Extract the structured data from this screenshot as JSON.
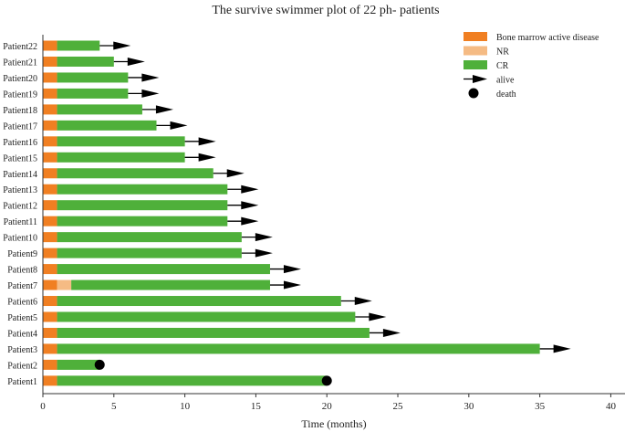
{
  "chart_data": {
    "type": "bar",
    "title": "The survive swimmer plot of 22 ph- patients",
    "xlabel": "Time (months)",
    "ylabel": "",
    "xlim": [
      0,
      41
    ],
    "xticks": [
      0,
      5,
      10,
      15,
      20,
      25,
      30,
      35,
      40
    ],
    "grid": false,
    "legend_position": "top-right",
    "colors": {
      "disease": "#f07f22",
      "nr": "#f5bb84",
      "cr": "#4fb03a",
      "marker": "#000000"
    },
    "legend": [
      {
        "key": "disease",
        "label": "Bone marrow active disease"
      },
      {
        "key": "nr",
        "label": "NR"
      },
      {
        "key": "cr",
        "label": "CR"
      },
      {
        "key": "alive",
        "label": "alive"
      },
      {
        "key": "death",
        "label": "death"
      }
    ],
    "patients": [
      {
        "label": "Patient22",
        "disease": 1,
        "nr": 0,
        "cr": 3,
        "outcome": "alive"
      },
      {
        "label": "Patient21",
        "disease": 1,
        "nr": 0,
        "cr": 4,
        "outcome": "alive"
      },
      {
        "label": "Patient20",
        "disease": 1,
        "nr": 0,
        "cr": 5,
        "outcome": "alive"
      },
      {
        "label": "Patient19",
        "disease": 1,
        "nr": 0,
        "cr": 5,
        "outcome": "alive"
      },
      {
        "label": "Patient18",
        "disease": 1,
        "nr": 0,
        "cr": 6,
        "outcome": "alive"
      },
      {
        "label": "Patient17",
        "disease": 1,
        "nr": 0,
        "cr": 7,
        "outcome": "alive"
      },
      {
        "label": "Patient16",
        "disease": 1,
        "nr": 0,
        "cr": 9,
        "outcome": "alive"
      },
      {
        "label": "Patient15",
        "disease": 1,
        "nr": 0,
        "cr": 9,
        "outcome": "alive"
      },
      {
        "label": "Patient14",
        "disease": 1,
        "nr": 0,
        "cr": 11,
        "outcome": "alive"
      },
      {
        "label": "Patient13",
        "disease": 1,
        "nr": 0,
        "cr": 12,
        "outcome": "alive"
      },
      {
        "label": "Patient12",
        "disease": 1,
        "nr": 0,
        "cr": 12,
        "outcome": "alive"
      },
      {
        "label": "Patient11",
        "disease": 1,
        "nr": 0,
        "cr": 12,
        "outcome": "alive"
      },
      {
        "label": "Patient10",
        "disease": 1,
        "nr": 0,
        "cr": 13,
        "outcome": "alive"
      },
      {
        "label": "Patient9",
        "disease": 1,
        "nr": 0,
        "cr": 13,
        "outcome": "alive"
      },
      {
        "label": "Patient8",
        "disease": 1,
        "nr": 0,
        "cr": 15,
        "outcome": "alive"
      },
      {
        "label": "Patient7",
        "disease": 1,
        "nr": 1,
        "cr": 14,
        "outcome": "alive"
      },
      {
        "label": "Patient6",
        "disease": 1,
        "nr": 0,
        "cr": 20,
        "outcome": "alive"
      },
      {
        "label": "Patient5",
        "disease": 1,
        "nr": 0,
        "cr": 21,
        "outcome": "alive"
      },
      {
        "label": "Patient4",
        "disease": 1,
        "nr": 0,
        "cr": 22,
        "outcome": "alive"
      },
      {
        "label": "Patient3",
        "disease": 1,
        "nr": 0,
        "cr": 34,
        "outcome": "alive"
      },
      {
        "label": "Patient2",
        "disease": 1,
        "nr": 0,
        "cr": 3,
        "outcome": "death"
      },
      {
        "label": "Patient1",
        "disease": 1,
        "nr": 0,
        "cr": 19,
        "outcome": "death"
      }
    ]
  }
}
